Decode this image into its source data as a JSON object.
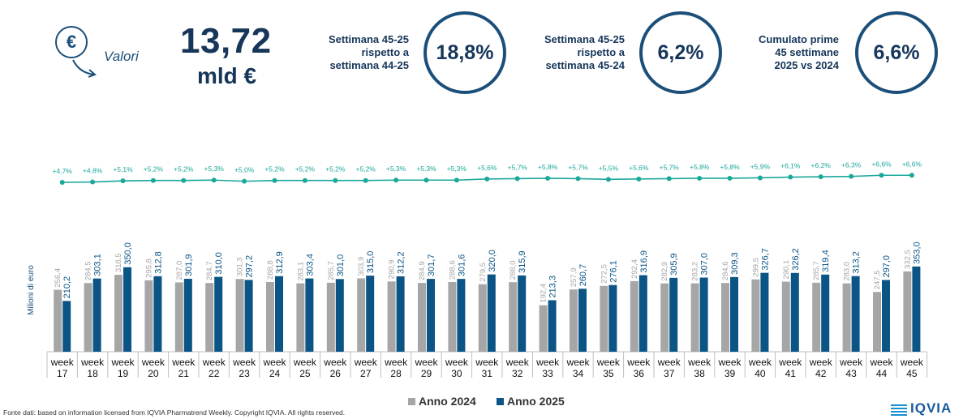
{
  "header": {
    "valori_label": "Valori",
    "total_value": "13,72",
    "total_unit": "mld €",
    "icon": "euro-coin-down-arrow-icon"
  },
  "kpis": [
    {
      "label_lines": [
        "Settimana 45-25",
        "rispetto a",
        "settimana 44-25"
      ],
      "value": "18,8%"
    },
    {
      "label_lines": [
        "Settimana 45-25",
        "rispetto a",
        "settimana 45-24"
      ],
      "value": "6,2%"
    },
    {
      "label_lines": [
        "Cumulato prime",
        "45 settimane",
        "2025 vs 2024"
      ],
      "value": "6,6%"
    }
  ],
  "chart_data": {
    "type": "bar",
    "ylabel": "Milioni di euro",
    "categories": [
      [
        "week",
        "17"
      ],
      [
        "week",
        "18"
      ],
      [
        "week",
        "19"
      ],
      [
        "week",
        "20"
      ],
      [
        "week",
        "21"
      ],
      [
        "week",
        "22"
      ],
      [
        "week",
        "23"
      ],
      [
        "week",
        "24"
      ],
      [
        "week",
        "25"
      ],
      [
        "week",
        "26"
      ],
      [
        "week",
        "27"
      ],
      [
        "week",
        "28"
      ],
      [
        "week",
        "29"
      ],
      [
        "week",
        "30"
      ],
      [
        "week",
        "31"
      ],
      [
        "week",
        "32"
      ],
      [
        "week",
        "33"
      ],
      [
        "week",
        "34"
      ],
      [
        "week",
        "35"
      ],
      [
        "week",
        "36"
      ],
      [
        "week",
        "37"
      ],
      [
        "week",
        "38"
      ],
      [
        "week",
        "39"
      ],
      [
        "week",
        "40"
      ],
      [
        "week",
        "41"
      ],
      [
        "week",
        "42"
      ],
      [
        "week",
        "43"
      ],
      [
        "week",
        "44"
      ],
      [
        "week",
        "45"
      ]
    ],
    "series": [
      {
        "name": "Anno 2024",
        "color": "#a6a6a6",
        "values": [
          256.4,
          284.5,
          318.5,
          295.8,
          287.0,
          284.7,
          301.3,
          288.8,
          283.1,
          285.7,
          303.9,
          290.9,
          284.9,
          288.6,
          279.5,
          288.0,
          192.4,
          257.9,
          272.5,
          292.4,
          282.9,
          283.2,
          284.6,
          299.5,
          290.1,
          285.7,
          283.0,
          247.5,
          332.5
        ],
        "labels": [
          "256,4",
          "284,5",
          "318,5",
          "295,8",
          "287,0",
          "284,7",
          "301,3",
          "288,8",
          "283,1",
          "285,7",
          "303,9",
          "290,9",
          "284,9",
          "288,6",
          "279,5",
          "288,0",
          "192,4",
          "257,9",
          "272,5",
          "292,4",
          "282,9",
          "283,2",
          "284,6",
          "299,5",
          "290,1",
          "285,7",
          "283,0",
          "247,5",
          "332,5"
        ]
      },
      {
        "name": "Anno 2025",
        "color": "#0b5486",
        "values": [
          210.2,
          303.1,
          350.0,
          312.8,
          301.9,
          310.0,
          297.2,
          312.9,
          303.4,
          301.0,
          315.0,
          312.2,
          301.7,
          301.6,
          320.0,
          315.9,
          213.3,
          260.7,
          276.1,
          316.9,
          305.9,
          307.0,
          309.3,
          326.7,
          326.2,
          319.4,
          313.2,
          297.0,
          353.0
        ],
        "labels": [
          "210,2",
          "303,1",
          "350,0",
          "312,8",
          "301,9",
          "310,0",
          "297,2",
          "312,9",
          "303,4",
          "301,0",
          "315,0",
          "312,2",
          "301,7",
          "301,6",
          "320,0",
          "315,9",
          "213,3",
          "260,7",
          "276,1",
          "316,9",
          "305,9",
          "307,0",
          "309,3",
          "326,7",
          "326,2",
          "319,4",
          "313,2",
          "297,0",
          "353,0"
        ]
      }
    ],
    "growth_line": {
      "color": "#1aa89a",
      "values": [
        4.7,
        4.8,
        5.1,
        5.2,
        5.2,
        5.3,
        5.0,
        5.2,
        5.2,
        5.2,
        5.2,
        5.3,
        5.3,
        5.3,
        5.6,
        5.7,
        5.8,
        5.7,
        5.5,
        5.6,
        5.7,
        5.8,
        5.8,
        5.9,
        6.1,
        6.2,
        6.3,
        6.6,
        6.6
      ],
      "labels": [
        "+4,7%",
        "+4,8%",
        "+5,1%",
        "+5,2%",
        "+5,2%",
        "+5,3%",
        "+5,0%",
        "+5,2%",
        "+5,2%",
        "+5,2%",
        "+5,2%",
        "+5,3%",
        "+5,3%",
        "+5,3%",
        "+5,6%",
        "+5,7%",
        "+5,8%",
        "+5,7%",
        "+5,5%",
        "+5,6%",
        "+5,7%",
        "+5,8%",
        "+5,8%",
        "+5,9%",
        "+6,1%",
        "+6,2%",
        "+6,3%",
        "+6,6%",
        "+6,6%"
      ]
    },
    "legend_position": "bottom"
  },
  "footer": {
    "source": "Fonte dati: based on information licensed from IQVIA Pharmatrend Weekly. Copyright IQVIA. All rights reserved.",
    "logo": "IQVIA"
  }
}
